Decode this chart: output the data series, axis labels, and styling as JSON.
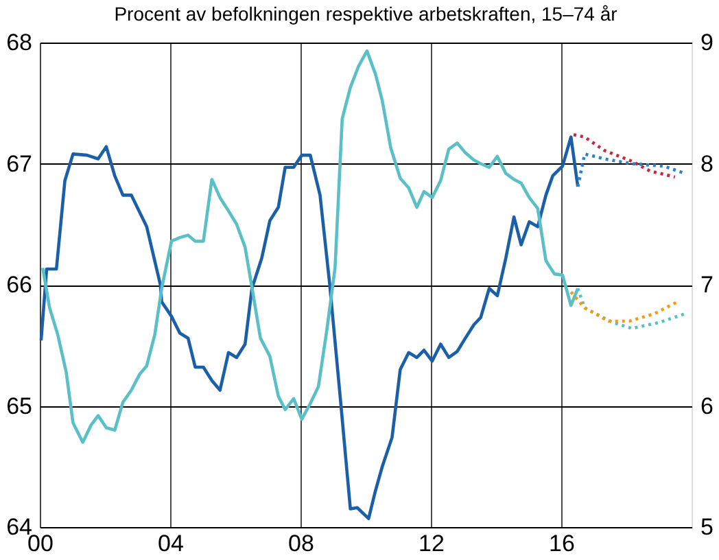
{
  "chart_data": {
    "type": "line",
    "title": "Procent av befolkningen respektive arbetskraften, 15–74 år",
    "xlim": [
      2000,
      2020
    ],
    "xticks": [
      {
        "value": 2000,
        "label": "00"
      },
      {
        "value": 2004,
        "label": "04"
      },
      {
        "value": 2008,
        "label": "08"
      },
      {
        "value": 2012,
        "label": "12"
      },
      {
        "value": 2016,
        "label": "16"
      }
    ],
    "ylim": [
      64,
      68
    ],
    "yticks": [
      64,
      65,
      66,
      67,
      68
    ],
    "y2lim": [
      5,
      9
    ],
    "y2ticks": [
      5,
      6,
      7,
      8,
      9
    ],
    "grid": true,
    "legend": false,
    "marker": "none",
    "series": [
      {
        "color": "#1a5fa8",
        "line_style": "solid",
        "x": [
          2000.04,
          2000.21,
          2000.51,
          2000.77,
          2001.02,
          2001.45,
          2001.79,
          2002.04,
          2002.3,
          2002.55,
          2002.81,
          2003.28,
          2003.7,
          2003.74,
          2004.04,
          2004.3,
          2004.55,
          2004.77,
          2005.02,
          2005.28,
          2005.53,
          2005.79,
          2006.04,
          2006.3,
          2006.51,
          2006.81,
          2007.06,
          2007.32,
          2007.53,
          2007.79,
          2008.04,
          2008.3,
          2008.6,
          2008.89,
          2009.23,
          2009.53,
          2009.74,
          2010.09,
          2010.3,
          2010.51,
          2010.81,
          2011.06,
          2011.32,
          2011.57,
          2011.79,
          2012.04,
          2012.3,
          2012.55,
          2012.81,
          2013.06,
          2013.32,
          2013.53,
          2013.79,
          2014.04,
          2014.3,
          2014.55,
          2014.77,
          2015.02,
          2015.28,
          2015.53,
          2015.74,
          2016.04,
          2016.3,
          2016.51
        ],
        "values": [
          65.54,
          66.13,
          66.13,
          66.86,
          67.08,
          67.07,
          67.04,
          67.14,
          66.9,
          66.74,
          66.74,
          66.48,
          66.0,
          65.86,
          65.74,
          65.6,
          65.56,
          65.32,
          65.32,
          65.21,
          65.13,
          65.44,
          65.4,
          65.51,
          65.97,
          66.22,
          66.53,
          66.64,
          66.97,
          66.97,
          67.07,
          67.07,
          66.74,
          66.02,
          65.04,
          64.15,
          64.16,
          64.07,
          64.3,
          64.5,
          64.74,
          65.3,
          65.44,
          65.4,
          65.46,
          65.37,
          65.51,
          65.4,
          65.45,
          65.56,
          65.67,
          65.73,
          65.97,
          65.91,
          66.22,
          66.56,
          66.33,
          66.52,
          66.48,
          66.74,
          66.9,
          66.98,
          67.22,
          66.81
        ]
      },
      {
        "color": "#2b80d0",
        "line_style": "dotted",
        "x": [
          2016.51,
          2016.72,
          2017.32,
          2018.17,
          2019.15,
          2019.79
        ],
        "values": [
          66.81,
          67.08,
          67.04,
          67.0,
          66.98,
          66.92
        ]
      },
      {
        "color": "#c8283c",
        "line_style": "dotted",
        "x": [
          2016.38,
          2016.72,
          2017.32,
          2018.17,
          2018.72,
          2019.49
        ],
        "values": [
          67.24,
          67.22,
          67.11,
          67.02,
          66.94,
          66.89
        ]
      },
      {
        "color": "#5bbfc8",
        "line_style": "solid",
        "axis": "y2",
        "x": [
          2000.09,
          2000.3,
          2000.55,
          2000.81,
          2001.02,
          2001.32,
          2001.57,
          2001.79,
          2002.04,
          2002.3,
          2002.55,
          2002.81,
          2003.06,
          2003.28,
          2003.53,
          2003.74,
          2004.04,
          2004.3,
          2004.55,
          2004.77,
          2005.02,
          2005.28,
          2005.53,
          2005.79,
          2006.04,
          2006.3,
          2006.51,
          2006.77,
          2007.06,
          2007.32,
          2007.53,
          2007.79,
          2008.04,
          2008.3,
          2008.55,
          2008.81,
          2009.06,
          2009.28,
          2009.53,
          2009.79,
          2010.04,
          2010.3,
          2010.51,
          2010.77,
          2011.06,
          2011.32,
          2011.57,
          2011.79,
          2012.04,
          2012.3,
          2012.55,
          2012.81,
          2013.06,
          2013.32,
          2013.53,
          2013.79,
          2014.04,
          2014.3,
          2014.55,
          2014.77,
          2015.02,
          2015.28,
          2015.53,
          2015.79,
          2016.04,
          2016.3,
          2016.51
        ],
        "values": [
          7.14,
          6.81,
          6.59,
          6.28,
          5.86,
          5.7,
          5.84,
          5.92,
          5.82,
          5.8,
          6.03,
          6.13,
          6.26,
          6.33,
          6.59,
          6.97,
          7.36,
          7.39,
          7.41,
          7.36,
          7.36,
          7.87,
          7.72,
          7.61,
          7.5,
          7.31,
          6.98,
          6.56,
          6.41,
          6.08,
          5.97,
          6.06,
          5.89,
          6.02,
          6.16,
          6.63,
          7.14,
          8.37,
          8.63,
          8.81,
          8.93,
          8.74,
          8.52,
          8.13,
          7.88,
          7.8,
          7.64,
          7.77,
          7.72,
          7.86,
          8.12,
          8.17,
          8.09,
          8.03,
          8.0,
          7.97,
          8.06,
          7.92,
          7.87,
          7.84,
          7.72,
          7.63,
          7.2,
          7.09,
          7.08,
          6.83,
          6.97
        ]
      },
      {
        "color": "#5bbfc8",
        "line_style": "dotted",
        "axis": "y2",
        "x": [
          2016.51,
          2016.72,
          2017.57,
          2018.17,
          2019.02,
          2019.79
        ],
        "values": [
          6.97,
          6.81,
          6.69,
          6.64,
          6.69,
          6.76
        ]
      },
      {
        "color": "#f39c12",
        "line_style": "dotted",
        "axis": "y2",
        "x": [
          2016.3,
          2016.72,
          2017.45,
          2018.09,
          2018.85,
          2019.57
        ],
        "values": [
          6.94,
          6.81,
          6.7,
          6.7,
          6.76,
          6.86
        ]
      }
    ]
  }
}
